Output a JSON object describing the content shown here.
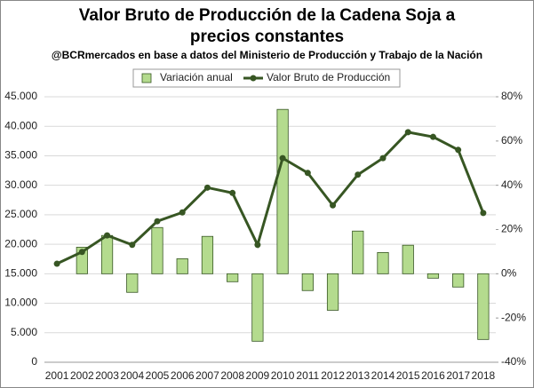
{
  "chart_data": {
    "type": "bar-line",
    "title": "Valor Bruto de Producción de la Cadena Soja a precios constantes",
    "subtitle": "@BCRmercados  en base a datos del Ministerio de Producción y Trabajo de la Nación",
    "categories": [
      "2001",
      "2002",
      "2003",
      "2004",
      "2005",
      "2006",
      "2007",
      "2008",
      "2009",
      "2010",
      "2011",
      "2012",
      "2013",
      "2014",
      "2015",
      "2016",
      "2017",
      "2018"
    ],
    "series": [
      {
        "name": "Variación anual",
        "type": "bar",
        "axis": "y2",
        "color": "#b4db8e",
        "values": [
          null,
          12.0,
          17.3,
          -8.4,
          20.9,
          6.8,
          16.9,
          -3.6,
          -30.5,
          74.3,
          -7.6,
          -16.5,
          19.3,
          9.6,
          12.9,
          -2.0,
          -6.0,
          -29.7
        ]
      },
      {
        "name": "Valor Bruto de Producción",
        "type": "line",
        "axis": "y",
        "color": "#375623",
        "values": [
          16700,
          18700,
          21500,
          19900,
          23900,
          25400,
          29600,
          28700,
          19900,
          34600,
          32100,
          26600,
          31800,
          34600,
          39000,
          38200,
          36000,
          25300
        ]
      }
    ],
    "ylim": [
      0,
      45000
    ],
    "yticks": [
      0,
      {
        "value": 5000,
        "label": "5.000"
      },
      {
        "value": 10000,
        "label": "10.000"
      },
      {
        "value": 15000,
        "label": "15.000"
      },
      {
        "value": 20000,
        "label": "20.000"
      },
      {
        "value": 25000,
        "label": "25.000"
      },
      {
        "value": 30000,
        "label": "30.000"
      },
      {
        "value": 35000,
        "label": "35.000"
      },
      {
        "value": 40000,
        "label": "40.000"
      },
      {
        "value": 45000,
        "label": "45.000"
      }
    ],
    "y2lim": [
      -40,
      80
    ],
    "y2ticks": [
      {
        "value": -40,
        "label": "-40%"
      },
      {
        "value": -20,
        "label": "-20%"
      },
      {
        "value": 0,
        "label": "0%"
      },
      {
        "value": 20,
        "label": "20%"
      },
      {
        "value": 40,
        "label": "40%"
      },
      {
        "value": 60,
        "label": "60%"
      },
      {
        "value": 80,
        "label": "80%"
      }
    ],
    "grid": true
  }
}
